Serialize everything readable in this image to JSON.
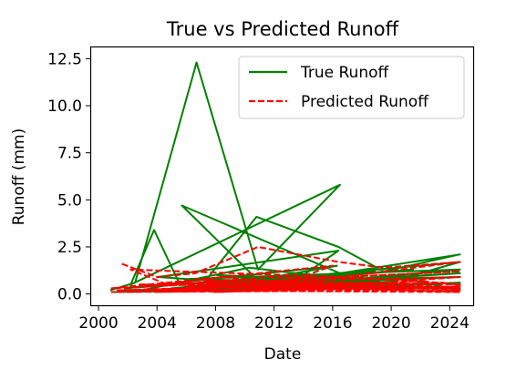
{
  "chart_data": {
    "type": "line",
    "title": "True vs Predicted Runoff",
    "xlabel": "Date",
    "ylabel": "Runoff (mm)",
    "xlim": [
      1999.5,
      2025.6
    ],
    "ylim": [
      -0.6,
      13.1
    ],
    "xticks": [
      2000,
      2004,
      2008,
      2012,
      2016,
      2020,
      2024
    ],
    "yticks": [
      0.0,
      2.5,
      5.0,
      7.5,
      10.0,
      12.5
    ],
    "grid": false,
    "legend_position": "top-right",
    "series": [
      {
        "name": "True Runoff",
        "color": "#008000",
        "style": "solid",
        "points": [
          [
            2000.8,
            0.2
          ],
          [
            2002.5,
            0.6
          ],
          [
            2006.7,
            12.3
          ],
          [
            2010.9,
            1.3
          ],
          [
            2016.5,
            5.8
          ],
          [
            2002.2,
            0.5
          ],
          [
            2003.8,
            3.4
          ],
          [
            2005.5,
            0.6
          ],
          [
            2007.0,
            0.4
          ],
          [
            2010.8,
            4.1
          ],
          [
            2016.4,
            2.5
          ],
          [
            2019.5,
            1.2
          ],
          [
            2024.7,
            2.1
          ],
          [
            2016.5,
            1.1
          ],
          [
            2005.7,
            4.7
          ],
          [
            2011.2,
            0.5
          ],
          [
            2004.1,
            0.9
          ],
          [
            2016.4,
            2.3
          ],
          [
            2014.0,
            1.0
          ],
          [
            2001.8,
            0.3
          ],
          [
            2016.3,
            1.5
          ],
          [
            2009.1,
            0.5
          ],
          [
            2018.9,
            1.2
          ],
          [
            2012.0,
            0.4
          ],
          [
            2024.7,
            1.3
          ],
          [
            2006.2,
            0.8
          ],
          [
            2020.0,
            0.5
          ],
          [
            2010.3,
            1.4
          ],
          [
            2003.0,
            0.2
          ],
          [
            2024.7,
            0.9
          ],
          [
            2013.2,
            0.7
          ],
          [
            2021.5,
            1.3
          ],
          [
            2005.0,
            0.3
          ],
          [
            2024.7,
            1.7
          ],
          [
            2019.7,
            0.6
          ],
          [
            2008.1,
            1.0
          ],
          [
            2015.6,
            0.4
          ],
          [
            2024.7,
            0.6
          ],
          [
            2001.0,
            0.1
          ],
          [
            2018.1,
            0.9
          ],
          [
            2011.6,
            0.3
          ],
          [
            2024.7,
            0.3
          ],
          [
            2007.5,
            0.7
          ],
          [
            2022.9,
            0.5
          ],
          [
            2002.0,
            0.1
          ],
          [
            2024.7,
            1.1
          ],
          [
            2014.8,
            0.6
          ],
          [
            2009.6,
            0.3
          ],
          [
            2021.0,
            0.8
          ],
          [
            2024.7,
            0.2
          ]
        ]
      },
      {
        "name": "Predicted Runoff",
        "color": "#ff0000",
        "style": "dashed",
        "points": [
          [
            2001.6,
            1.6
          ],
          [
            2004.0,
            0.9
          ],
          [
            2006.6,
            1.1
          ],
          [
            2010.9,
            2.5
          ],
          [
            2016.4,
            1.7
          ],
          [
            2019.5,
            1.4
          ],
          [
            2024.7,
            1.7
          ],
          [
            2016.5,
            0.9
          ],
          [
            2002.2,
            1.3
          ],
          [
            2004.7,
            0.5
          ],
          [
            2008.4,
            0.9
          ],
          [
            2012.8,
            0.6
          ],
          [
            2016.0,
            1.5
          ],
          [
            2000.9,
            0.3
          ],
          [
            2024.7,
            1.2
          ],
          [
            2003.5,
            0.4
          ],
          [
            2011.8,
            0.9
          ],
          [
            2020.2,
            0.8
          ],
          [
            2024.7,
            0.5
          ],
          [
            2007.3,
            0.7
          ],
          [
            2014.6,
            0.4
          ],
          [
            2001.3,
            0.2
          ],
          [
            2018.5,
            0.6
          ],
          [
            2024.7,
            0.3
          ],
          [
            2009.8,
            0.5
          ],
          [
            2005.2,
            0.2
          ],
          [
            2022.1,
            0.7
          ],
          [
            2013.4,
            0.3
          ],
          [
            2024.7,
            0.9
          ],
          [
            2002.8,
            0.5
          ],
          [
            2017.0,
            0.4
          ],
          [
            2008.9,
            0.2
          ],
          [
            2021.4,
            0.3
          ],
          [
            2000.9,
            0.1
          ],
          [
            2024.7,
            0.2
          ],
          [
            2012.5,
            0.6
          ],
          [
            2006.0,
            0.4
          ],
          [
            2019.0,
            0.2
          ],
          [
            2024.7,
            0.4
          ],
          [
            2003.9,
            0.1
          ],
          [
            2015.3,
            0.7
          ],
          [
            2010.5,
            0.2
          ],
          [
            2023.6,
            0.6
          ],
          [
            2001.9,
            0.2
          ],
          [
            2024.7,
            0.1
          ],
          [
            2016.8,
            0.3
          ],
          [
            2007.9,
            0.1
          ],
          [
            2020.7,
            0.4
          ],
          [
            2024.7,
            0.3
          ]
        ]
      }
    ]
  }
}
